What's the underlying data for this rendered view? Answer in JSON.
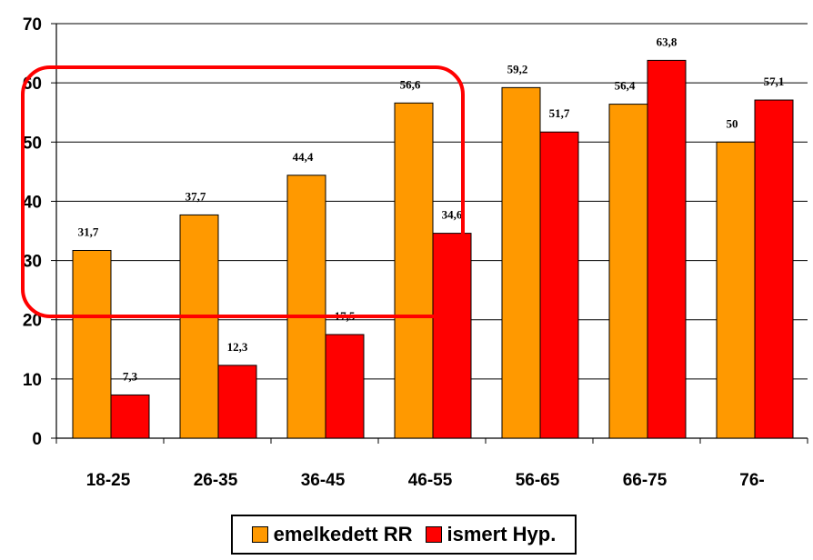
{
  "chart_data": {
    "type": "bar",
    "categories": [
      "18-25",
      "26-35",
      "36-45",
      "46-55",
      "56-65",
      "66-75",
      "76-"
    ],
    "series": [
      {
        "name": "emelkedett RR",
        "values": [
          31.7,
          37.7,
          44.4,
          56.6,
          59.2,
          56.4,
          50
        ],
        "labels": [
          "31,7",
          "37,7",
          "44,4",
          "56,6",
          "59,2",
          "56,4",
          "50"
        ],
        "color": "#FF9900"
      },
      {
        "name": "ismert Hyp.",
        "values": [
          7.3,
          12.3,
          17.5,
          34.6,
          51.7,
          63.8,
          57.1
        ],
        "labels": [
          "7,3",
          "12,3",
          "17,5",
          "34,6",
          "51,7",
          "63,8",
          "57,1"
        ],
        "color": "#FF0000"
      }
    ],
    "yticks": [
      "0",
      "10",
      "20",
      "30",
      "40",
      "50",
      "60",
      "70"
    ],
    "ylim": [
      0,
      70
    ],
    "grid": true,
    "legend_position": "bottom",
    "highlight_color": "#FF0000"
  },
  "legend": {
    "series1_label": "emelkedett RR",
    "series2_label": "ismert Hyp."
  }
}
